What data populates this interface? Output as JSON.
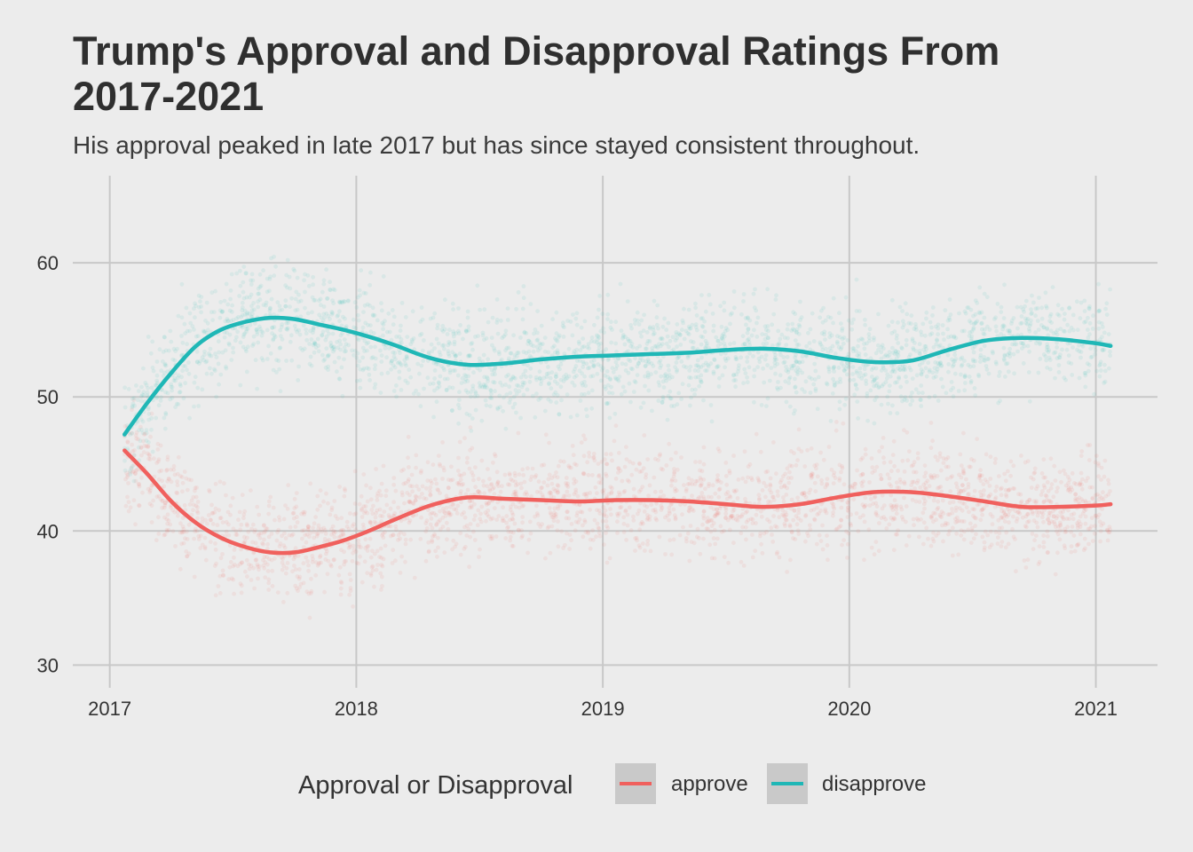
{
  "chart_data": {
    "type": "line",
    "title_line1": "Trump's Approval and Disapproval Ratings From",
    "title_line2": "2017-2021",
    "subtitle": "His approval peaked in late 2017 but has since stayed consistent throughout.",
    "xlabel": "",
    "ylabel": "",
    "x_ticks": [
      "2017",
      "2018",
      "2019",
      "2020",
      "2021"
    ],
    "y_ticks": [
      "30",
      "40",
      "50",
      "60"
    ],
    "xlim": [
      2016.85,
      2021.25
    ],
    "ylim": [
      28.3,
      66.5
    ],
    "grid": true,
    "legend": {
      "title": "Approval or Disapproval",
      "position": "bottom",
      "entries": [
        "approve",
        "disapprove"
      ]
    },
    "series": [
      {
        "name": "approve",
        "color": "#f0605d",
        "x": [
          2017.06,
          2017.15,
          2017.25,
          2017.35,
          2017.45,
          2017.55,
          2017.65,
          2017.75,
          2017.85,
          2017.95,
          2018.05,
          2018.15,
          2018.3,
          2018.45,
          2018.6,
          2018.75,
          2018.9,
          2019.05,
          2019.2,
          2019.35,
          2019.5,
          2019.65,
          2019.8,
          2019.95,
          2020.1,
          2020.25,
          2020.4,
          2020.55,
          2020.7,
          2020.85,
          2021.0,
          2021.06
        ],
        "values": [
          46.0,
          44.3,
          42.2,
          40.6,
          39.5,
          38.8,
          38.4,
          38.4,
          38.8,
          39.3,
          40.0,
          40.8,
          41.9,
          42.5,
          42.4,
          42.3,
          42.2,
          42.3,
          42.3,
          42.2,
          42.0,
          41.8,
          42.0,
          42.5,
          42.9,
          42.9,
          42.6,
          42.2,
          41.8,
          41.8,
          41.9,
          42.0
        ]
      },
      {
        "name": "disapprove",
        "color": "#1fb7b6",
        "x": [
          2017.06,
          2017.15,
          2017.25,
          2017.35,
          2017.45,
          2017.55,
          2017.65,
          2017.75,
          2017.85,
          2017.95,
          2018.05,
          2018.15,
          2018.3,
          2018.45,
          2018.6,
          2018.75,
          2018.9,
          2019.05,
          2019.2,
          2019.35,
          2019.5,
          2019.65,
          2019.8,
          2019.95,
          2020.1,
          2020.25,
          2020.4,
          2020.55,
          2020.7,
          2020.85,
          2021.0,
          2021.06
        ],
        "values": [
          47.2,
          49.5,
          51.8,
          53.8,
          55.0,
          55.6,
          55.9,
          55.8,
          55.4,
          55.0,
          54.5,
          53.9,
          52.9,
          52.4,
          52.5,
          52.8,
          53.0,
          53.1,
          53.2,
          53.3,
          53.5,
          53.6,
          53.4,
          52.9,
          52.6,
          52.7,
          53.5,
          54.2,
          54.4,
          54.3,
          54.0,
          53.8
        ]
      }
    ]
  }
}
